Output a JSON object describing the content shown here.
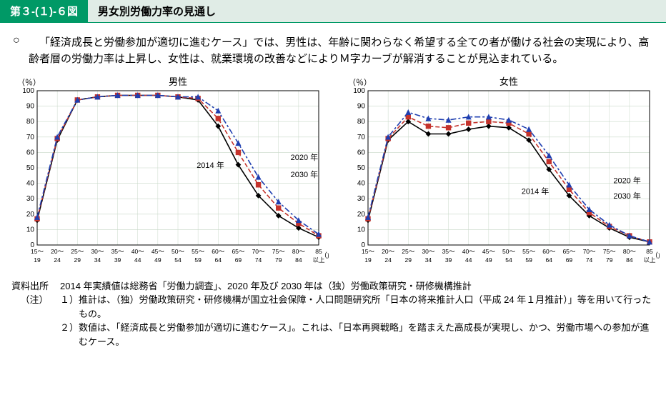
{
  "header": {
    "tag": "第３-(１)-６図",
    "title": "男女別労働力率の見通し"
  },
  "lead": {
    "bullet": "○",
    "text": "「経済成長と労働参加が適切に進むケース」では、男性は、年齢に関わらなく希望する全ての者が働ける社会の実現により、高齢者層の労働力率は上昇し、女性は、就業環境の改善などによりＭ字カーブが解消することが見込まれている。"
  },
  "charts": {
    "ylabel": "（％）",
    "xlabel": "（歳）",
    "ytick_step": 10,
    "ylim": [
      0,
      100
    ],
    "grid_color": "#c8d8c8",
    "axis_color": "#000000",
    "background_color": "#ffffff",
    "categories_top": [
      "15～",
      "20～",
      "25～",
      "30～",
      "35～",
      "40～",
      "45～",
      "50～",
      "55～",
      "60～",
      "65～",
      "70～",
      "75～",
      "80～",
      "85"
    ],
    "categories_bottom": [
      "19",
      "24",
      "29",
      "34",
      "39",
      "44",
      "49",
      "54",
      "59",
      "64",
      "69",
      "74",
      "79",
      "84",
      "以上"
    ],
    "label_fontsize": 8.5,
    "series_meta": {
      "2014": {
        "color": "#000000",
        "marker": "diamond",
        "dash": "",
        "label": "2014 年"
      },
      "2020": {
        "color": "#c4332c",
        "marker": "square",
        "dash": "6 3",
        "label": "2020 年"
      },
      "2030": {
        "color": "#1f3fb0",
        "marker": "triangle",
        "dash": "8 3 3 3",
        "label": "2030 年"
      }
    },
    "male": {
      "title": "男性",
      "series": {
        "2014": [
          16,
          68,
          94,
          96,
          97,
          97,
          97,
          96,
          94,
          77,
          52,
          32,
          19,
          11,
          5
        ],
        "2020": [
          17,
          69,
          94,
          96,
          97,
          97,
          97,
          96,
          95,
          82,
          60,
          39,
          24,
          14,
          6
        ],
        "2030": [
          18,
          70,
          94,
          96,
          97,
          97,
          97,
          96,
          96,
          87,
          66,
          44,
          28,
          16,
          7
        ]
      },
      "annotations": {
        "2014": {
          "x_idx": 9.3,
          "y": 50,
          "anchor": "end"
        },
        "2020": {
          "x_idx": 12.6,
          "y": 55,
          "anchor": "start"
        },
        "2030": {
          "x_idx": 12.6,
          "y": 44,
          "anchor": "start"
        }
      }
    },
    "female": {
      "title": "女性",
      "series": {
        "2014": [
          16,
          68,
          80,
          72,
          72,
          75,
          77,
          76,
          68,
          49,
          32,
          19,
          11,
          5,
          2
        ],
        "2020": [
          17,
          69,
          83,
          77,
          76,
          79,
          80,
          79,
          72,
          54,
          36,
          21,
          12,
          6,
          2
        ],
        "2030": [
          18,
          70,
          86,
          82,
          81,
          83,
          83,
          81,
          75,
          58,
          39,
          23,
          13,
          6,
          2
        ]
      },
      "annotations": {
        "2014": {
          "x_idx": 9.0,
          "y": 33,
          "anchor": "end"
        },
        "2020": {
          "x_idx": 12.2,
          "y": 40,
          "anchor": "start"
        },
        "2030": {
          "x_idx": 12.2,
          "y": 30,
          "anchor": "start"
        }
      }
    }
  },
  "footnotes": {
    "source_label": "資料出所",
    "source_text": "2014 年実績値は総務省「労働力調査」、2020 年及び 2030 年は（独）労働政策研究・研修機構推計",
    "notes_label": "（注）",
    "notes": [
      {
        "num": "１）",
        "text": "推計は、（独）労働政策研究・研修機構が国立社会保障・人口問題研究所「日本の将来推計人口（平成 24 年１月推計）」等を用いて行ったもの。"
      },
      {
        "num": "２）",
        "text": "数値は、「経済成長と労働参加が適切に進むケース」。これは、「日本再興戦略」を踏まえた高成長が実現し、かつ、労働市場への参加が進むケース。"
      }
    ]
  }
}
